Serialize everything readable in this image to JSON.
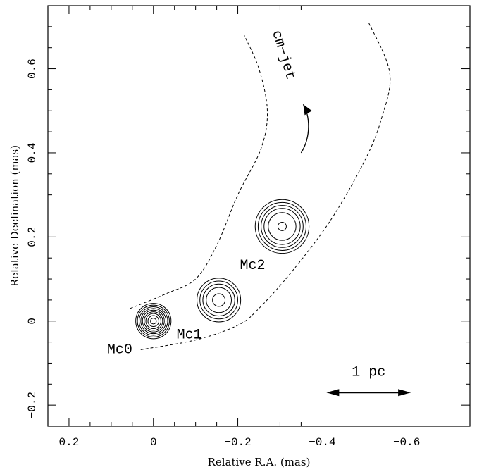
{
  "chart_data": {
    "type": "scatter",
    "xlabel": "Relative R.A. (mas)",
    "ylabel": "Relative Declination (mas)",
    "xlim": [
      0.25,
      -0.75
    ],
    "ylim": [
      -0.25,
      0.75
    ],
    "xticks": [
      0.2,
      0,
      -0.2,
      -0.4,
      -0.6
    ],
    "xtick_labels": [
      "0.2",
      "0",
      "−0.2",
      "−0.4",
      "−0.6"
    ],
    "yticks": [
      -0.2,
      0,
      0.2,
      0.4,
      0.6
    ],
    "ytick_labels": [
      "−0.2",
      "0",
      "0.2",
      "0.4",
      "0.6"
    ],
    "components": [
      {
        "name": "Mc0",
        "x": 0.0,
        "y": 0.0,
        "radii_mas": [
          0.007,
          0.013,
          0.018,
          0.022,
          0.026,
          0.03,
          0.034,
          0.038,
          0.042
        ]
      },
      {
        "name": "Mc1",
        "x": -0.155,
        "y": 0.05,
        "radii_mas": [
          0.015,
          0.03,
          0.038,
          0.045,
          0.052
        ]
      },
      {
        "name": "Mc2",
        "x": -0.305,
        "y": 0.225,
        "radii_mas": [
          0.01,
          0.033,
          0.043,
          0.05,
          0.057,
          0.064
        ]
      }
    ],
    "jet_boundaries": [
      {
        "points": [
          [
            0.055,
            0.03
          ],
          [
            -0.03,
            0.065
          ],
          [
            -0.1,
            0.1
          ],
          [
            -0.15,
            0.18
          ],
          [
            -0.2,
            0.3
          ],
          [
            -0.255,
            0.41
          ],
          [
            -0.27,
            0.5
          ],
          [
            -0.25,
            0.6
          ],
          [
            -0.215,
            0.68
          ]
        ]
      },
      {
        "points": [
          [
            0.03,
            -0.068
          ],
          [
            -0.1,
            -0.045
          ],
          [
            -0.2,
            -0.01
          ],
          [
            -0.25,
            0.03
          ],
          [
            -0.33,
            0.12
          ],
          [
            -0.42,
            0.24
          ],
          [
            -0.5,
            0.38
          ],
          [
            -0.54,
            0.48
          ],
          [
            -0.56,
            0.59
          ],
          [
            -0.51,
            0.71
          ]
        ]
      }
    ],
    "annotations": [
      {
        "text": "cm−jet",
        "x": -0.3,
        "y": 0.63,
        "angle_deg": 73
      },
      {
        "text": "1 pc",
        "x": -0.51,
        "y": -0.13
      }
    ],
    "curved_arrow": [
      [
        -0.35,
        0.4
      ],
      [
        -0.375,
        0.44
      ],
      [
        -0.37,
        0.49
      ],
      [
        -0.355,
        0.515
      ]
    ],
    "scale_bar": {
      "x0": -0.41,
      "x1": -0.61,
      "y": -0.17
    }
  }
}
